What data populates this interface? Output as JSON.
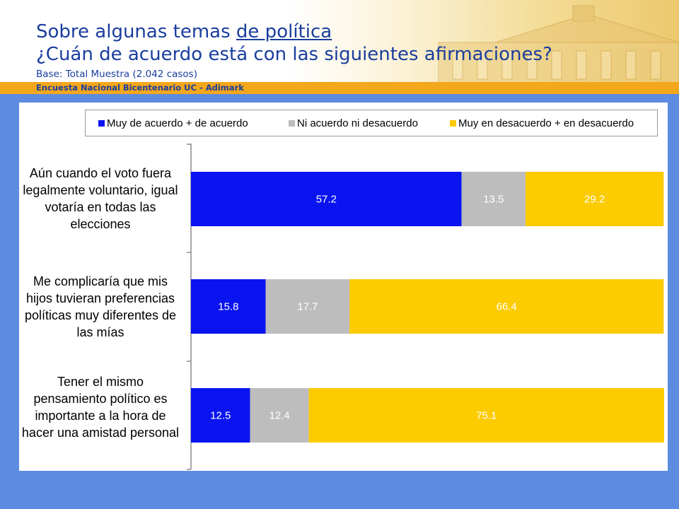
{
  "header": {
    "title_part1": "Sobre algunas temas ",
    "title_part1_underlined": "de política",
    "title_line2": "¿Cuán de acuerdo está con las siguientes afirmaciones?",
    "base": "Base: Total Muestra (2.042 casos)",
    "band_text": "Encuesta Nacional Bicentenario UC - Adimark"
  },
  "colors": {
    "title": "#1a3e9e",
    "band": "#f3a71b",
    "frame": "#5c8be0"
  },
  "chart_data": {
    "type": "bar",
    "orientation": "horizontal",
    "stacked": true,
    "categories": [
      "Aún cuando el voto fuera legalmente voluntario, igual votaría en todas las elecciones",
      "Me complicaría que mis hijos tuvieran preferencias políticas muy diferentes de las mías",
      "Tener el mismo pensamiento político es importante a la hora de hacer una amistad personal"
    ],
    "series": [
      {
        "name": "Muy de acuerdo + de acuerdo",
        "color": "#0a14f0",
        "values": [
          57.2,
          15.8,
          12.5
        ]
      },
      {
        "name": "Ni acuerdo ni desacuerdo",
        "color": "#bdbdbd",
        "values": [
          13.5,
          17.7,
          12.4
        ]
      },
      {
        "name": "Muy en desacuerdo + en desacuerdo",
        "color": "#fccb00",
        "values": [
          29.2,
          66.4,
          75.1
        ]
      }
    ],
    "xlim": [
      0,
      100
    ],
    "legend_position": "top",
    "grid": false,
    "data_labels": true
  }
}
